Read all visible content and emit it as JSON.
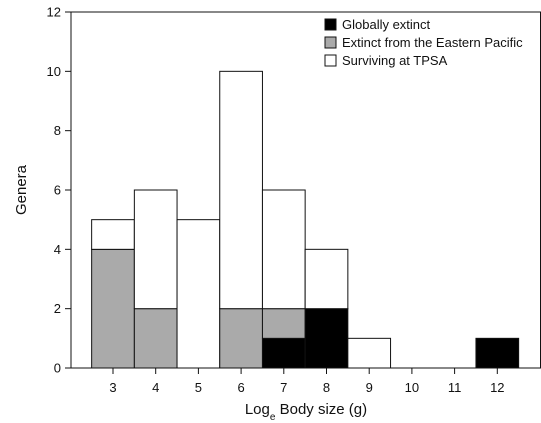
{
  "chart_data": {
    "type": "bar",
    "stacked": true,
    "categories": [
      "3",
      "4",
      "5",
      "6",
      "7",
      "8",
      "9",
      "10",
      "11",
      "12"
    ],
    "series": [
      {
        "name": "Globally extinct",
        "color": "#000000",
        "values": [
          0,
          0,
          0,
          0,
          1,
          2,
          0,
          0,
          0,
          1
        ]
      },
      {
        "name": "Extinct from the Eastern Pacific",
        "color": "#aaaaaa",
        "values": [
          4,
          2,
          0,
          2,
          1,
          0,
          0,
          0,
          0,
          0
        ]
      },
      {
        "name": "Surviving at TPSA",
        "color": "#ffffff",
        "values": [
          1,
          4,
          5,
          8,
          4,
          2,
          1,
          0,
          0,
          0
        ]
      }
    ],
    "ylim": [
      0,
      12
    ],
    "yticks": [
      "0",
      "2",
      "4",
      "6",
      "8",
      "10",
      "12"
    ],
    "ylabel": "Genera",
    "xlabel": {
      "base": "Log",
      "subscript": "e",
      "rest": " Body size (g)"
    },
    "legend_position": "top-right",
    "grid": false
  }
}
